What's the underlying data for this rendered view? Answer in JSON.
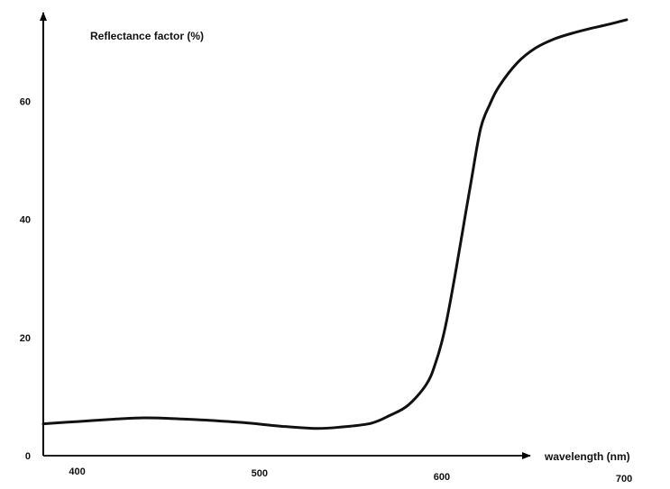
{
  "chart_data": {
    "type": "line",
    "title": "",
    "xlabel": "wavelength (nm)",
    "ylabel": "Reflectance factor (%)",
    "xlim": [
      380,
      705
    ],
    "ylim": [
      0,
      75
    ],
    "xticks": [
      400,
      500,
      600,
      700
    ],
    "yticks": [
      0,
      20,
      40,
      60
    ],
    "grid": false,
    "legend": "none",
    "colors": {
      "line": "#111111",
      "axis": "#000000"
    },
    "series": [
      {
        "x": [
          380,
          400,
          420,
          435,
          450,
          470,
          490,
          510,
          530,
          545,
          560,
          570,
          580,
          590,
          595,
          600,
          605,
          610,
          615,
          620,
          625,
          630,
          640,
          650,
          660,
          670,
          680,
          690,
          700
        ],
        "y": [
          5.4,
          5.8,
          6.2,
          6.4,
          6.3,
          6.0,
          5.6,
          5.0,
          4.6,
          4.9,
          5.5,
          6.8,
          8.5,
          12.0,
          15.5,
          21.0,
          29.0,
          38.0,
          47.0,
          55.5,
          59.5,
          62.5,
          66.5,
          69.0,
          70.5,
          71.5,
          72.3,
          73.0,
          73.8
        ]
      }
    ]
  }
}
